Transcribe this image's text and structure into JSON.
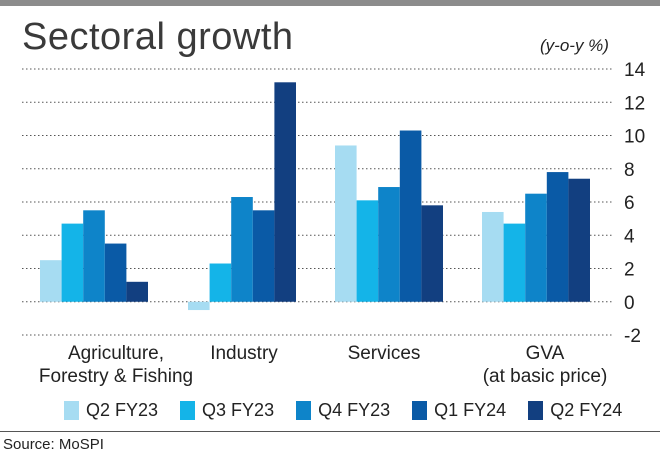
{
  "chart_data": {
    "type": "bar",
    "title": "Sectoral growth",
    "unit_label": "(y-o-y %)",
    "categories": [
      "Agriculture,\nForestry & Fishing",
      "Industry",
      "Services",
      "GVA\n(at basic price)"
    ],
    "series": [
      {
        "name": "Q2 FY23",
        "color": "#a6dcf2",
        "values": [
          2.5,
          -0.5,
          9.4,
          5.4
        ]
      },
      {
        "name": "Q3 FY23",
        "color": "#14b4e8",
        "values": [
          4.7,
          2.3,
          6.1,
          4.7
        ]
      },
      {
        "name": "Q4 FY23",
        "color": "#0e84c9",
        "values": [
          5.5,
          6.3,
          6.9,
          6.5
        ]
      },
      {
        "name": "Q1 FY24",
        "color": "#0a5aa6",
        "values": [
          3.5,
          5.5,
          10.3,
          7.8
        ]
      },
      {
        "name": "Q2 FY24",
        "color": "#123f80",
        "values": [
          1.2,
          13.2,
          5.8,
          7.4
        ]
      }
    ],
    "ylim": [
      -2,
      14
    ],
    "yticks": [
      14,
      12,
      10,
      8,
      6,
      4,
      2,
      0,
      -2
    ],
    "grid": true,
    "legend_position": "bottom",
    "source": "Source: MoSPI"
  }
}
